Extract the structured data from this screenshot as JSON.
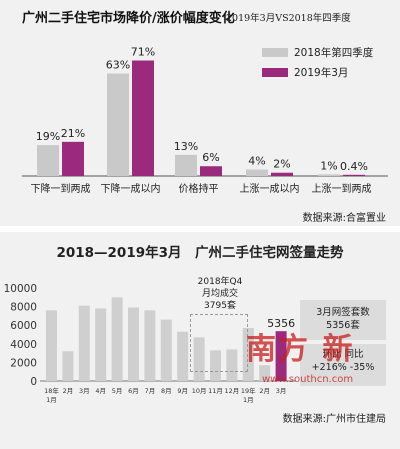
{
  "top": {
    "title": "广州二手住宅市场降价/涨价幅度变化",
    "subtitle": "2019年3月VS2018年四季度",
    "legend": [
      {
        "name": "2018年第四季度",
        "color": "#c9c9c9"
      },
      {
        "name": "2019年3月",
        "color": "#9b2a7d"
      }
    ],
    "source": "数据来源:合富置业"
  },
  "bottom": {
    "title": "2018—2019年3月　广州二手住宅网签量走势",
    "annotation_lines": [
      "2018年Q4",
      "月均成交",
      "3795套"
    ],
    "highlight_label": "5356",
    "stat_box1": [
      "3月网签套数",
      "5356套"
    ],
    "stat_box2": [
      "环比",
      "+216%",
      "同比",
      "-35%"
    ],
    "source": "数据来源:广州市住建局",
    "watermark": "南方 新",
    "watermark_url": "www.southcn.com"
  },
  "chart_data": [
    {
      "type": "bar",
      "categories": [
        "下降一到两成",
        "下降一成以内",
        "价格持平",
        "上涨一成以内",
        "上涨一到两成"
      ],
      "series": [
        {
          "name": "2018年第四季度",
          "values": [
            19,
            63,
            13,
            4,
            1
          ],
          "labels": [
            "19%",
            "63%",
            "13%",
            "4%",
            "1%"
          ]
        },
        {
          "name": "2019年3月",
          "values": [
            21,
            71,
            6,
            2,
            0.4
          ],
          "labels": [
            "21%",
            "71%",
            "6%",
            "2%",
            "0.4%"
          ]
        }
      ],
      "ylim": [
        0,
        75
      ]
    },
    {
      "type": "bar",
      "categories": [
        "18年1月",
        "2月",
        "3月",
        "4月",
        "5月",
        "6月",
        "7月",
        "8月",
        "9月",
        "10月",
        "11月",
        "12月",
        "19年1月",
        "2月",
        "3月"
      ],
      "values": [
        7600,
        3200,
        8100,
        7800,
        9000,
        7900,
        7600,
        6600,
        5300,
        4700,
        3300,
        3400,
        5700,
        1700,
        5356
      ],
      "yticks": [
        "0",
        "2000",
        "4000",
        "6000",
        "8000",
        "10000"
      ],
      "ylim": [
        0,
        10000
      ],
      "highlight_index": 14
    }
  ]
}
